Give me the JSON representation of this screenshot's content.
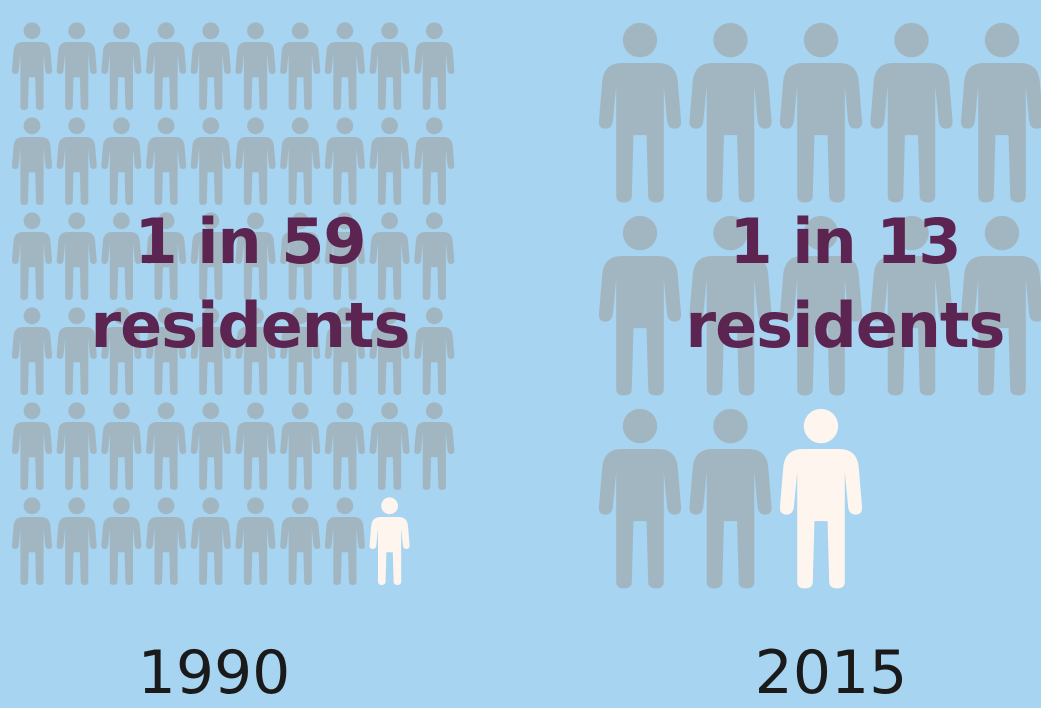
{
  "colors": {
    "background": "#a6d4f1",
    "person": "#a2b6c2",
    "highlight": "#fdf5ee",
    "ratio_text": "#5b2451",
    "year_text": "#1a1a1a"
  },
  "chart_data": [
    {
      "type": "pictogram",
      "year": "1990",
      "ratio_line1": "1 in 59",
      "ratio_line2": "residents",
      "one_in": 59,
      "highlighted": 1,
      "icons_total": 59,
      "icon": "person-icon"
    },
    {
      "type": "pictogram",
      "year": "2015",
      "ratio_line1": "1 in 13",
      "ratio_line2": "residents",
      "one_in": 13,
      "highlighted": 1,
      "icons_total": 13,
      "icon": "person-icon"
    }
  ]
}
